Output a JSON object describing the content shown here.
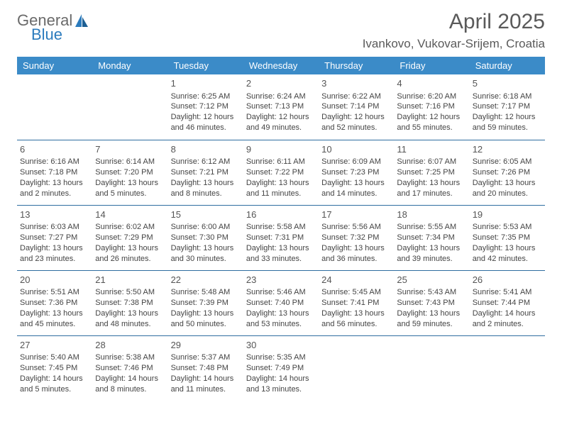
{
  "brand": {
    "name_top": "General",
    "name_bottom": "Blue",
    "color_top": "#6a6a6a",
    "color_bottom": "#2b7bbd"
  },
  "title": "April 2025",
  "location": "Ivankovo, Vukovar-Srijem, Croatia",
  "colors": {
    "header_bg": "#3b8bc8",
    "header_text": "#ffffff",
    "row_border": "#2f6da0",
    "text": "#444444",
    "title": "#5a5a5a"
  },
  "weekdays": [
    "Sunday",
    "Monday",
    "Tuesday",
    "Wednesday",
    "Thursday",
    "Friday",
    "Saturday"
  ],
  "weeks": [
    [
      {
        "day": "",
        "sunrise": "",
        "sunset": "",
        "daylight": ""
      },
      {
        "day": "",
        "sunrise": "",
        "sunset": "",
        "daylight": ""
      },
      {
        "day": "1",
        "sunrise": "Sunrise: 6:25 AM",
        "sunset": "Sunset: 7:12 PM",
        "daylight": "Daylight: 12 hours and 46 minutes."
      },
      {
        "day": "2",
        "sunrise": "Sunrise: 6:24 AM",
        "sunset": "Sunset: 7:13 PM",
        "daylight": "Daylight: 12 hours and 49 minutes."
      },
      {
        "day": "3",
        "sunrise": "Sunrise: 6:22 AM",
        "sunset": "Sunset: 7:14 PM",
        "daylight": "Daylight: 12 hours and 52 minutes."
      },
      {
        "day": "4",
        "sunrise": "Sunrise: 6:20 AM",
        "sunset": "Sunset: 7:16 PM",
        "daylight": "Daylight: 12 hours and 55 minutes."
      },
      {
        "day": "5",
        "sunrise": "Sunrise: 6:18 AM",
        "sunset": "Sunset: 7:17 PM",
        "daylight": "Daylight: 12 hours and 59 minutes."
      }
    ],
    [
      {
        "day": "6",
        "sunrise": "Sunrise: 6:16 AM",
        "sunset": "Sunset: 7:18 PM",
        "daylight": "Daylight: 13 hours and 2 minutes."
      },
      {
        "day": "7",
        "sunrise": "Sunrise: 6:14 AM",
        "sunset": "Sunset: 7:20 PM",
        "daylight": "Daylight: 13 hours and 5 minutes."
      },
      {
        "day": "8",
        "sunrise": "Sunrise: 6:12 AM",
        "sunset": "Sunset: 7:21 PM",
        "daylight": "Daylight: 13 hours and 8 minutes."
      },
      {
        "day": "9",
        "sunrise": "Sunrise: 6:11 AM",
        "sunset": "Sunset: 7:22 PM",
        "daylight": "Daylight: 13 hours and 11 minutes."
      },
      {
        "day": "10",
        "sunrise": "Sunrise: 6:09 AM",
        "sunset": "Sunset: 7:23 PM",
        "daylight": "Daylight: 13 hours and 14 minutes."
      },
      {
        "day": "11",
        "sunrise": "Sunrise: 6:07 AM",
        "sunset": "Sunset: 7:25 PM",
        "daylight": "Daylight: 13 hours and 17 minutes."
      },
      {
        "day": "12",
        "sunrise": "Sunrise: 6:05 AM",
        "sunset": "Sunset: 7:26 PM",
        "daylight": "Daylight: 13 hours and 20 minutes."
      }
    ],
    [
      {
        "day": "13",
        "sunrise": "Sunrise: 6:03 AM",
        "sunset": "Sunset: 7:27 PM",
        "daylight": "Daylight: 13 hours and 23 minutes."
      },
      {
        "day": "14",
        "sunrise": "Sunrise: 6:02 AM",
        "sunset": "Sunset: 7:29 PM",
        "daylight": "Daylight: 13 hours and 26 minutes."
      },
      {
        "day": "15",
        "sunrise": "Sunrise: 6:00 AM",
        "sunset": "Sunset: 7:30 PM",
        "daylight": "Daylight: 13 hours and 30 minutes."
      },
      {
        "day": "16",
        "sunrise": "Sunrise: 5:58 AM",
        "sunset": "Sunset: 7:31 PM",
        "daylight": "Daylight: 13 hours and 33 minutes."
      },
      {
        "day": "17",
        "sunrise": "Sunrise: 5:56 AM",
        "sunset": "Sunset: 7:32 PM",
        "daylight": "Daylight: 13 hours and 36 minutes."
      },
      {
        "day": "18",
        "sunrise": "Sunrise: 5:55 AM",
        "sunset": "Sunset: 7:34 PM",
        "daylight": "Daylight: 13 hours and 39 minutes."
      },
      {
        "day": "19",
        "sunrise": "Sunrise: 5:53 AM",
        "sunset": "Sunset: 7:35 PM",
        "daylight": "Daylight: 13 hours and 42 minutes."
      }
    ],
    [
      {
        "day": "20",
        "sunrise": "Sunrise: 5:51 AM",
        "sunset": "Sunset: 7:36 PM",
        "daylight": "Daylight: 13 hours and 45 minutes."
      },
      {
        "day": "21",
        "sunrise": "Sunrise: 5:50 AM",
        "sunset": "Sunset: 7:38 PM",
        "daylight": "Daylight: 13 hours and 48 minutes."
      },
      {
        "day": "22",
        "sunrise": "Sunrise: 5:48 AM",
        "sunset": "Sunset: 7:39 PM",
        "daylight": "Daylight: 13 hours and 50 minutes."
      },
      {
        "day": "23",
        "sunrise": "Sunrise: 5:46 AM",
        "sunset": "Sunset: 7:40 PM",
        "daylight": "Daylight: 13 hours and 53 minutes."
      },
      {
        "day": "24",
        "sunrise": "Sunrise: 5:45 AM",
        "sunset": "Sunset: 7:41 PM",
        "daylight": "Daylight: 13 hours and 56 minutes."
      },
      {
        "day": "25",
        "sunrise": "Sunrise: 5:43 AM",
        "sunset": "Sunset: 7:43 PM",
        "daylight": "Daylight: 13 hours and 59 minutes."
      },
      {
        "day": "26",
        "sunrise": "Sunrise: 5:41 AM",
        "sunset": "Sunset: 7:44 PM",
        "daylight": "Daylight: 14 hours and 2 minutes."
      }
    ],
    [
      {
        "day": "27",
        "sunrise": "Sunrise: 5:40 AM",
        "sunset": "Sunset: 7:45 PM",
        "daylight": "Daylight: 14 hours and 5 minutes."
      },
      {
        "day": "28",
        "sunrise": "Sunrise: 5:38 AM",
        "sunset": "Sunset: 7:46 PM",
        "daylight": "Daylight: 14 hours and 8 minutes."
      },
      {
        "day": "29",
        "sunrise": "Sunrise: 5:37 AM",
        "sunset": "Sunset: 7:48 PM",
        "daylight": "Daylight: 14 hours and 11 minutes."
      },
      {
        "day": "30",
        "sunrise": "Sunrise: 5:35 AM",
        "sunset": "Sunset: 7:49 PM",
        "daylight": "Daylight: 14 hours and 13 minutes."
      },
      {
        "day": "",
        "sunrise": "",
        "sunset": "",
        "daylight": ""
      },
      {
        "day": "",
        "sunrise": "",
        "sunset": "",
        "daylight": ""
      },
      {
        "day": "",
        "sunrise": "",
        "sunset": "",
        "daylight": ""
      }
    ]
  ]
}
